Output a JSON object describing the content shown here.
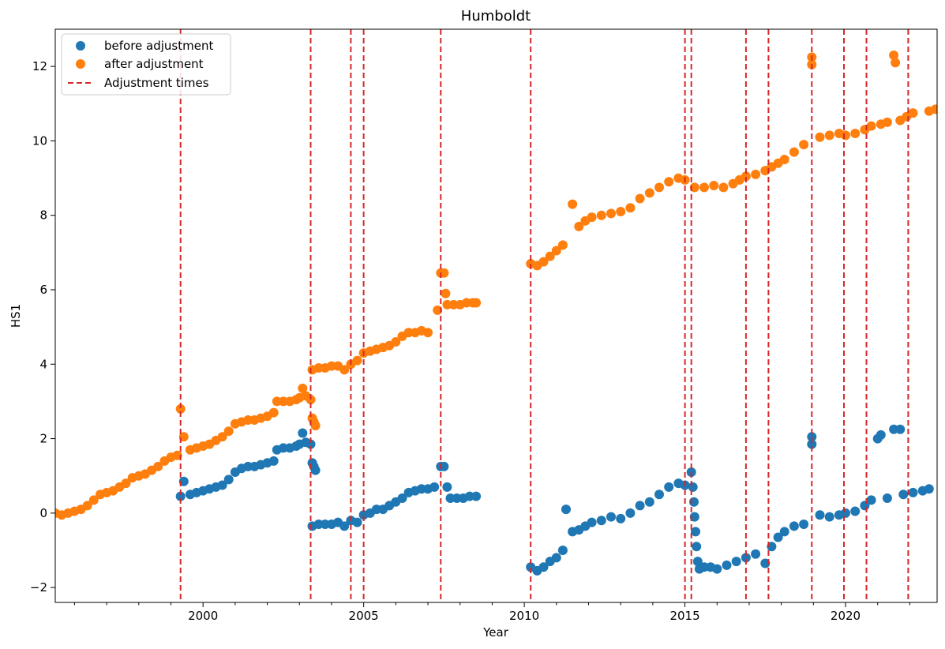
{
  "chart_data": {
    "type": "scatter",
    "title": "Humboldt",
    "xlabel": "Year",
    "ylabel": "HS1",
    "xlim": [
      1995.4,
      2022.85
    ],
    "ylim": [
      -2.4,
      13.0
    ],
    "x_ticks": [
      2000,
      2005,
      2010,
      2015,
      2020
    ],
    "x_tick_labels": [
      "2000",
      "2005",
      "2010",
      "2015",
      "2020"
    ],
    "y_ticks": [
      -2,
      0,
      2,
      4,
      6,
      8,
      10,
      12
    ],
    "y_tick_labels": [
      "−2",
      "0",
      "2",
      "4",
      "6",
      "8",
      "10",
      "12"
    ],
    "grid": false,
    "legend_position": "top-left",
    "colors": {
      "before": "#1f77b4",
      "after": "#ff7f0e",
      "adjust": "#d62728"
    },
    "series": [
      {
        "name": "before adjustment",
        "marker": "circle",
        "points": [
          [
            1999.3,
            0.45
          ],
          [
            1999.4,
            0.85
          ],
          [
            1999.6,
            0.5
          ],
          [
            1999.8,
            0.55
          ],
          [
            2000.0,
            0.6
          ],
          [
            2000.2,
            0.65
          ],
          [
            2000.4,
            0.7
          ],
          [
            2000.6,
            0.75
          ],
          [
            2000.8,
            0.9
          ],
          [
            2001.0,
            1.1
          ],
          [
            2001.2,
            1.2
          ],
          [
            2001.4,
            1.25
          ],
          [
            2001.6,
            1.25
          ],
          [
            2001.8,
            1.3
          ],
          [
            2002.0,
            1.35
          ],
          [
            2002.2,
            1.4
          ],
          [
            2002.3,
            1.7
          ],
          [
            2002.5,
            1.75
          ],
          [
            2002.7,
            1.75
          ],
          [
            2002.9,
            1.8
          ],
          [
            2003.0,
            1.85
          ],
          [
            2003.1,
            2.15
          ],
          [
            2003.2,
            1.9
          ],
          [
            2003.35,
            1.85
          ],
          [
            2003.4,
            1.35
          ],
          [
            2003.45,
            1.25
          ],
          [
            2003.5,
            1.15
          ],
          [
            2003.4,
            -0.35
          ],
          [
            2003.6,
            -0.3
          ],
          [
            2003.8,
            -0.3
          ],
          [
            2004.0,
            -0.3
          ],
          [
            2004.2,
            -0.25
          ],
          [
            2004.4,
            -0.35
          ],
          [
            2004.6,
            -0.2
          ],
          [
            2004.8,
            -0.25
          ],
          [
            2005.0,
            -0.05
          ],
          [
            2005.2,
            0.0
          ],
          [
            2005.4,
            0.1
          ],
          [
            2005.6,
            0.1
          ],
          [
            2005.8,
            0.2
          ],
          [
            2006.0,
            0.3
          ],
          [
            2006.2,
            0.4
          ],
          [
            2006.4,
            0.55
          ],
          [
            2006.6,
            0.6
          ],
          [
            2006.8,
            0.65
          ],
          [
            2007.0,
            0.65
          ],
          [
            2007.2,
            0.7
          ],
          [
            2007.4,
            1.25
          ],
          [
            2007.5,
            1.25
          ],
          [
            2007.6,
            0.7
          ],
          [
            2007.7,
            0.4
          ],
          [
            2007.9,
            0.4
          ],
          [
            2008.1,
            0.4
          ],
          [
            2008.3,
            0.45
          ],
          [
            2008.5,
            0.45
          ],
          [
            2010.2,
            -1.45
          ],
          [
            2010.4,
            -1.55
          ],
          [
            2010.6,
            -1.45
          ],
          [
            2010.8,
            -1.3
          ],
          [
            2011.0,
            -1.2
          ],
          [
            2011.2,
            -1.0
          ],
          [
            2011.3,
            0.1
          ],
          [
            2011.5,
            -0.5
          ],
          [
            2011.7,
            -0.45
          ],
          [
            2011.9,
            -0.35
          ],
          [
            2012.1,
            -0.25
          ],
          [
            2012.4,
            -0.2
          ],
          [
            2012.7,
            -0.1
          ],
          [
            2013.0,
            -0.15
          ],
          [
            2013.3,
            0.0
          ],
          [
            2013.6,
            0.2
          ],
          [
            2013.9,
            0.3
          ],
          [
            2014.2,
            0.5
          ],
          [
            2014.5,
            0.7
          ],
          [
            2014.8,
            0.8
          ],
          [
            2015.0,
            0.75
          ],
          [
            2015.2,
            1.1
          ],
          [
            2015.25,
            0.7
          ],
          [
            2015.28,
            0.3
          ],
          [
            2015.3,
            -0.1
          ],
          [
            2015.33,
            -0.5
          ],
          [
            2015.36,
            -0.9
          ],
          [
            2015.4,
            -1.3
          ],
          [
            2015.45,
            -1.5
          ],
          [
            2015.6,
            -1.45
          ],
          [
            2015.8,
            -1.45
          ],
          [
            2016.0,
            -1.5
          ],
          [
            2016.3,
            -1.4
          ],
          [
            2016.6,
            -1.3
          ],
          [
            2016.9,
            -1.2
          ],
          [
            2017.2,
            -1.1
          ],
          [
            2017.5,
            -1.35
          ],
          [
            2017.7,
            -0.9
          ],
          [
            2017.9,
            -0.65
          ],
          [
            2018.1,
            -0.5
          ],
          [
            2018.4,
            -0.35
          ],
          [
            2018.7,
            -0.3
          ],
          [
            2018.95,
            2.05
          ],
          [
            2018.95,
            1.85
          ],
          [
            2019.2,
            -0.05
          ],
          [
            2019.5,
            -0.1
          ],
          [
            2019.8,
            -0.05
          ],
          [
            2020.0,
            0.0
          ],
          [
            2020.3,
            0.05
          ],
          [
            2020.6,
            0.2
          ],
          [
            2020.8,
            0.35
          ],
          [
            2021.0,
            2.0
          ],
          [
            2021.1,
            2.1
          ],
          [
            2021.3,
            0.4
          ],
          [
            2021.5,
            2.25
          ],
          [
            2021.7,
            2.25
          ],
          [
            2021.8,
            0.5
          ],
          [
            2022.1,
            0.55
          ],
          [
            2022.4,
            0.6
          ],
          [
            2022.6,
            0.65
          ]
        ]
      },
      {
        "name": "after adjustment",
        "marker": "circle",
        "points": [
          [
            1995.4,
            0.0
          ],
          [
            1995.6,
            -0.05
          ],
          [
            1995.8,
            0.0
          ],
          [
            1996.0,
            0.05
          ],
          [
            1996.2,
            0.1
          ],
          [
            1996.4,
            0.2
          ],
          [
            1996.6,
            0.35
          ],
          [
            1996.8,
            0.5
          ],
          [
            1997.0,
            0.55
          ],
          [
            1997.2,
            0.6
          ],
          [
            1997.4,
            0.7
          ],
          [
            1997.6,
            0.8
          ],
          [
            1997.8,
            0.95
          ],
          [
            1998.0,
            1.0
          ],
          [
            1998.2,
            1.05
          ],
          [
            1998.4,
            1.15
          ],
          [
            1998.6,
            1.25
          ],
          [
            1998.8,
            1.4
          ],
          [
            1999.0,
            1.5
          ],
          [
            1999.2,
            1.55
          ],
          [
            1999.3,
            2.8
          ],
          [
            1999.4,
            2.05
          ],
          [
            1999.6,
            1.7
          ],
          [
            1999.8,
            1.75
          ],
          [
            2000.0,
            1.8
          ],
          [
            2000.2,
            1.85
          ],
          [
            2000.4,
            1.95
          ],
          [
            2000.6,
            2.05
          ],
          [
            2000.8,
            2.2
          ],
          [
            2001.0,
            2.4
          ],
          [
            2001.2,
            2.45
          ],
          [
            2001.4,
            2.5
          ],
          [
            2001.6,
            2.5
          ],
          [
            2001.8,
            2.55
          ],
          [
            2002.0,
            2.6
          ],
          [
            2002.2,
            2.7
          ],
          [
            2002.3,
            3.0
          ],
          [
            2002.5,
            3.0
          ],
          [
            2002.7,
            3.0
          ],
          [
            2002.9,
            3.05
          ],
          [
            2003.0,
            3.1
          ],
          [
            2003.1,
            3.35
          ],
          [
            2003.2,
            3.15
          ],
          [
            2003.35,
            3.05
          ],
          [
            2003.4,
            2.55
          ],
          [
            2003.45,
            2.45
          ],
          [
            2003.5,
            2.35
          ],
          [
            2003.4,
            3.85
          ],
          [
            2003.6,
            3.9
          ],
          [
            2003.8,
            3.9
          ],
          [
            2004.0,
            3.95
          ],
          [
            2004.2,
            3.95
          ],
          [
            2004.4,
            3.85
          ],
          [
            2004.6,
            4.0
          ],
          [
            2004.8,
            4.1
          ],
          [
            2005.0,
            4.3
          ],
          [
            2005.2,
            4.35
          ],
          [
            2005.4,
            4.4
          ],
          [
            2005.6,
            4.45
          ],
          [
            2005.8,
            4.5
          ],
          [
            2006.0,
            4.6
          ],
          [
            2006.2,
            4.75
          ],
          [
            2006.4,
            4.85
          ],
          [
            2006.6,
            4.85
          ],
          [
            2006.8,
            4.9
          ],
          [
            2007.0,
            4.85
          ],
          [
            2007.3,
            5.45
          ],
          [
            2007.4,
            6.45
          ],
          [
            2007.5,
            6.45
          ],
          [
            2007.55,
            5.9
          ],
          [
            2007.6,
            5.6
          ],
          [
            2007.8,
            5.6
          ],
          [
            2008.0,
            5.6
          ],
          [
            2008.2,
            5.65
          ],
          [
            2008.4,
            5.65
          ],
          [
            2008.5,
            5.65
          ],
          [
            2010.2,
            6.7
          ],
          [
            2010.4,
            6.65
          ],
          [
            2010.6,
            6.75
          ],
          [
            2010.8,
            6.9
          ],
          [
            2011.0,
            7.05
          ],
          [
            2011.2,
            7.2
          ],
          [
            2011.5,
            8.3
          ],
          [
            2011.7,
            7.7
          ],
          [
            2011.9,
            7.85
          ],
          [
            2012.1,
            7.95
          ],
          [
            2012.4,
            8.0
          ],
          [
            2012.7,
            8.05
          ],
          [
            2013.0,
            8.1
          ],
          [
            2013.3,
            8.2
          ],
          [
            2013.6,
            8.45
          ],
          [
            2013.9,
            8.6
          ],
          [
            2014.2,
            8.75
          ],
          [
            2014.5,
            8.9
          ],
          [
            2014.8,
            9.0
          ],
          [
            2015.0,
            8.95
          ],
          [
            2015.3,
            8.75
          ],
          [
            2015.6,
            8.75
          ],
          [
            2015.9,
            8.8
          ],
          [
            2016.2,
            8.75
          ],
          [
            2016.5,
            8.85
          ],
          [
            2016.7,
            8.95
          ],
          [
            2016.9,
            9.05
          ],
          [
            2017.2,
            9.1
          ],
          [
            2017.5,
            9.2
          ],
          [
            2017.7,
            9.3
          ],
          [
            2017.9,
            9.4
          ],
          [
            2018.1,
            9.5
          ],
          [
            2018.4,
            9.7
          ],
          [
            2018.7,
            9.9
          ],
          [
            2018.95,
            12.25
          ],
          [
            2018.95,
            12.05
          ],
          [
            2019.2,
            10.1
          ],
          [
            2019.5,
            10.15
          ],
          [
            2019.8,
            10.2
          ],
          [
            2020.0,
            10.15
          ],
          [
            2020.3,
            10.2
          ],
          [
            2020.6,
            10.3
          ],
          [
            2020.8,
            10.4
          ],
          [
            2021.1,
            10.45
          ],
          [
            2021.3,
            10.5
          ],
          [
            2021.5,
            12.3
          ],
          [
            2021.55,
            12.1
          ],
          [
            2021.7,
            10.55
          ],
          [
            2021.9,
            10.65
          ],
          [
            2022.1,
            10.75
          ],
          [
            2022.6,
            10.8
          ],
          [
            2022.8,
            10.85
          ]
        ]
      },
      {
        "name": "Adjustment times",
        "style": "dashed",
        "x": [
          1999.3,
          2003.35,
          2004.6,
          2005.0,
          2007.4,
          2010.2,
          2015.0,
          2015.2,
          2016.9,
          2017.6,
          2018.95,
          2019.95,
          2020.65,
          2021.95
        ]
      }
    ]
  }
}
